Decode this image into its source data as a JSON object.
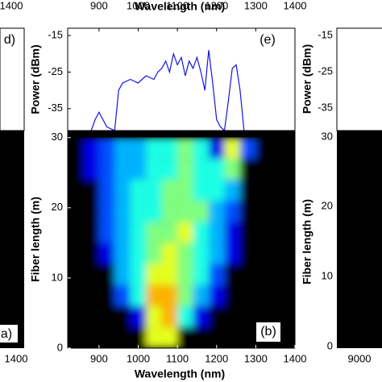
{
  "chart_data": [
    {
      "type": "line",
      "x_label": "Wavelength (nm)",
      "y_label": "Power (dBm)",
      "annotation": "(e)",
      "color": "#1414e6",
      "x": [
        880,
        890,
        900,
        920,
        940,
        950,
        960,
        980,
        1000,
        1020,
        1040,
        1050,
        1060,
        1070,
        1080,
        1090,
        1100,
        1110,
        1120,
        1130,
        1140,
        1150,
        1160,
        1170,
        1180,
        1190,
        1200,
        1210,
        1220,
        1230,
        1240,
        1250,
        1260,
        1270
      ],
      "values": [
        -41,
        -38,
        -36,
        -40,
        -41,
        -30,
        -28,
        -27,
        -28,
        -26,
        -27,
        -25,
        -24,
        -22,
        -25,
        -20,
        -23,
        -21,
        -26,
        -22,
        -24,
        -21,
        -25,
        -30,
        -19,
        -28,
        -38,
        -40,
        -41,
        -33,
        -24,
        -23,
        -30,
        -41
      ],
      "xlim": [
        820,
        1400
      ],
      "ylim": [
        -41,
        -13
      ],
      "xticks": [
        900,
        1000,
        1100,
        1200,
        1300,
        1400
      ],
      "yticks": [
        -15,
        -25,
        -35
      ]
    },
    {
      "type": "heatmap",
      "x_label": "Wavelength (nm)",
      "y_label": "Fiber length (m)",
      "annotation": "(b)",
      "xbins": [
        820,
        860,
        900,
        940,
        980,
        1020,
        1060,
        1100,
        1140,
        1180,
        1220,
        1260,
        1300,
        1340,
        1380
      ],
      "ybins": [
        0,
        3,
        6,
        9,
        12,
        15,
        18,
        21,
        24,
        27,
        30
      ],
      "z": [
        [
          0,
          0,
          0,
          0,
          0,
          0.6,
          0.6,
          0,
          0,
          0,
          0,
          0,
          0,
          0
        ],
        [
          0,
          0,
          0,
          0,
          0.1,
          0.6,
          0.7,
          0.4,
          0.1,
          0,
          0,
          0,
          0,
          0
        ],
        [
          0,
          0,
          0,
          0.2,
          0.4,
          0.7,
          0.7,
          0.5,
          0.3,
          0.1,
          0,
          0,
          0,
          0
        ],
        [
          0,
          0,
          0,
          0.3,
          0.4,
          0.6,
          0.6,
          0.5,
          0.4,
          0.2,
          0,
          0,
          0,
          0
        ],
        [
          0,
          0,
          0.1,
          0.3,
          0.4,
          0.5,
          0.6,
          0.5,
          0.4,
          0.3,
          0.1,
          0,
          0,
          0
        ],
        [
          0,
          0,
          0.2,
          0.3,
          0.4,
          0.5,
          0.5,
          0.6,
          0.4,
          0.3,
          0.1,
          0,
          0,
          0
        ],
        [
          0,
          0,
          0.2,
          0.3,
          0.4,
          0.4,
          0.5,
          0.5,
          0.5,
          0.3,
          0.2,
          0,
          0,
          0
        ],
        [
          0,
          0,
          0.2,
          0.3,
          0.4,
          0.4,
          0.5,
          0.5,
          0.4,
          0.4,
          0.3,
          0,
          0,
          0
        ],
        [
          0,
          0.1,
          0.2,
          0.3,
          0.3,
          0.4,
          0.4,
          0.5,
          0.4,
          0.4,
          0.5,
          0,
          0,
          0
        ],
        [
          0,
          0.1,
          0.2,
          0.3,
          0.3,
          0.4,
          0.4,
          0.5,
          0.4,
          0.1,
          0.6,
          0.2,
          0,
          0
        ]
      ],
      "xlim": [
        820,
        1400
      ],
      "ylim": [
        0,
        31
      ],
      "xticks": [
        900,
        1000,
        1100,
        1200,
        1300,
        1400
      ],
      "yticks": [
        0,
        10,
        20,
        30
      ]
    }
  ],
  "side_panels": {
    "left": {
      "top_tick": "1400",
      "top_label": "d)",
      "bottom_label": "a)",
      "bottom_tick": "1400"
    },
    "right": {
      "power_ticks": [
        "-15",
        "-25",
        "-35"
      ],
      "power_label": "Power (dBm)",
      "length_ticks": [
        "30",
        "20",
        "10",
        "0"
      ],
      "length_label": "Fiber length (m)",
      "bottom_tick": "9000"
    }
  }
}
